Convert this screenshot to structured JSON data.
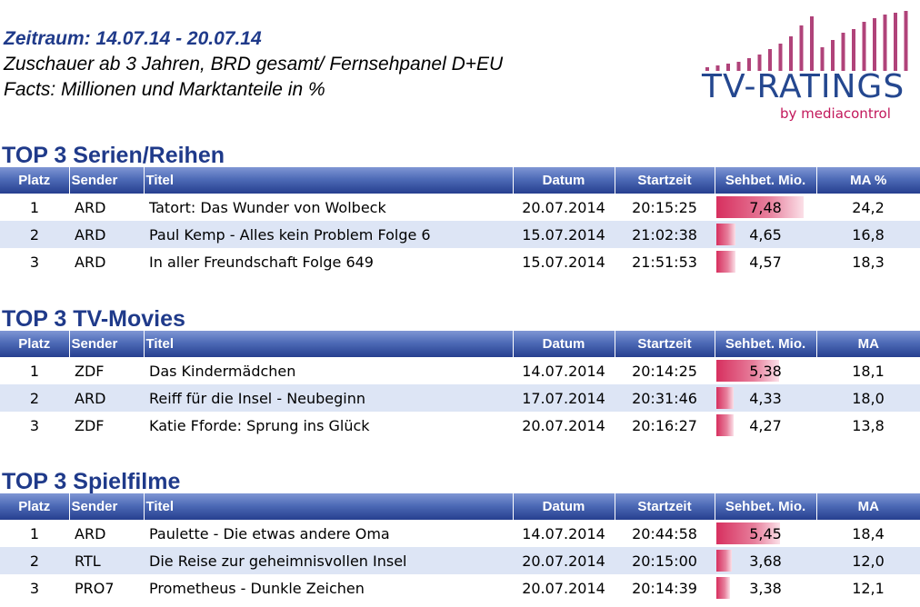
{
  "header": {
    "period": "Zeitraum: 14.07.14 - 20.07.14",
    "audience": "Zuschauer ab 3 Jahren, BRD gesamt/ Fernsehpanel D+EU",
    "facts": "Facts: Millionen und Marktanteile in %"
  },
  "logo": {
    "title": "TV-RATINGS",
    "subtitle": "by mediacontrol",
    "icon": "equalizer-bars-icon",
    "color_bars": "#b0437a",
    "color_text": "#24478f"
  },
  "colors": {
    "accent": "#1f3a8a",
    "bar": "#d7305f",
    "row_alt": "#dde5f5"
  },
  "sections": [
    {
      "title": "TOP 3 Serien/Reihen",
      "headers": [
        "Platz",
        "Sender",
        "Titel",
        "Datum",
        "Startzeit",
        "Sehbet. Mio.",
        "MA %"
      ],
      "rows": [
        {
          "platz": "1",
          "sender": "ARD",
          "titel": "Tatort: Das Wunder von Wolbeck",
          "datum": "20.07.2014",
          "start": "20:15:25",
          "seh": "7,48",
          "ma": "24,2",
          "seh_value": 7.48
        },
        {
          "platz": "2",
          "sender": "ARD",
          "titel": "Paul Kemp - Alles kein Problem Folge 6",
          "datum": "15.07.2014",
          "start": "21:02:38",
          "seh": "4,65",
          "ma": "16,8",
          "seh_value": 4.65
        },
        {
          "platz": "3",
          "sender": "ARD",
          "titel": "In aller Freundschaft Folge 649",
          "datum": "15.07.2014",
          "start": "21:51:53",
          "seh": "4,57",
          "ma": "18,3",
          "seh_value": 4.57
        }
      ]
    },
    {
      "title": "TOP 3 TV-Movies",
      "headers": [
        "Platz",
        "Sender",
        "Titel",
        "Datum",
        "Startzeit",
        "Sehbet. Mio.",
        "MA"
      ],
      "rows": [
        {
          "platz": "1",
          "sender": "ZDF",
          "titel": "Das Kindermädchen",
          "datum": "14.07.2014",
          "start": "20:14:25",
          "seh": "5,38",
          "ma": "18,1",
          "seh_value": 5.38
        },
        {
          "platz": "2",
          "sender": "ARD",
          "titel": "Reiff für die Insel - Neubeginn",
          "datum": "17.07.2014",
          "start": "20:31:46",
          "seh": "4,33",
          "ma": "18,0",
          "seh_value": 4.33
        },
        {
          "platz": "3",
          "sender": "ZDF",
          "titel": "Katie Fforde: Sprung ins Glück",
          "datum": "20.07.2014",
          "start": "20:16:27",
          "seh": "4,27",
          "ma": "13,8",
          "seh_value": 4.27
        }
      ]
    },
    {
      "title": "TOP 3 Spielfilme",
      "headers": [
        "Platz",
        "Sender",
        "Titel",
        "Datum",
        "Startzeit",
        "Sehbet. Mio.",
        "MA"
      ],
      "rows": [
        {
          "platz": "1",
          "sender": "ARD",
          "titel": "Paulette - Die etwas andere Oma",
          "datum": "14.07.2014",
          "start": "20:44:58",
          "seh": "5,45",
          "ma": "18,4",
          "seh_value": 5.45
        },
        {
          "platz": "2",
          "sender": "RTL",
          "titel": "Die Reise zur geheimnisvollen Insel",
          "datum": "20.07.2014",
          "start": "20:15:00",
          "seh": "3,68",
          "ma": "12,0",
          "seh_value": 3.68
        },
        {
          "platz": "3",
          "sender": "PRO7",
          "titel": "Prometheus - Dunkle Zeichen",
          "datum": "20.07.2014",
          "start": "20:14:39",
          "seh": "3,38",
          "ma": "12,1",
          "seh_value": 3.38
        }
      ]
    }
  ]
}
